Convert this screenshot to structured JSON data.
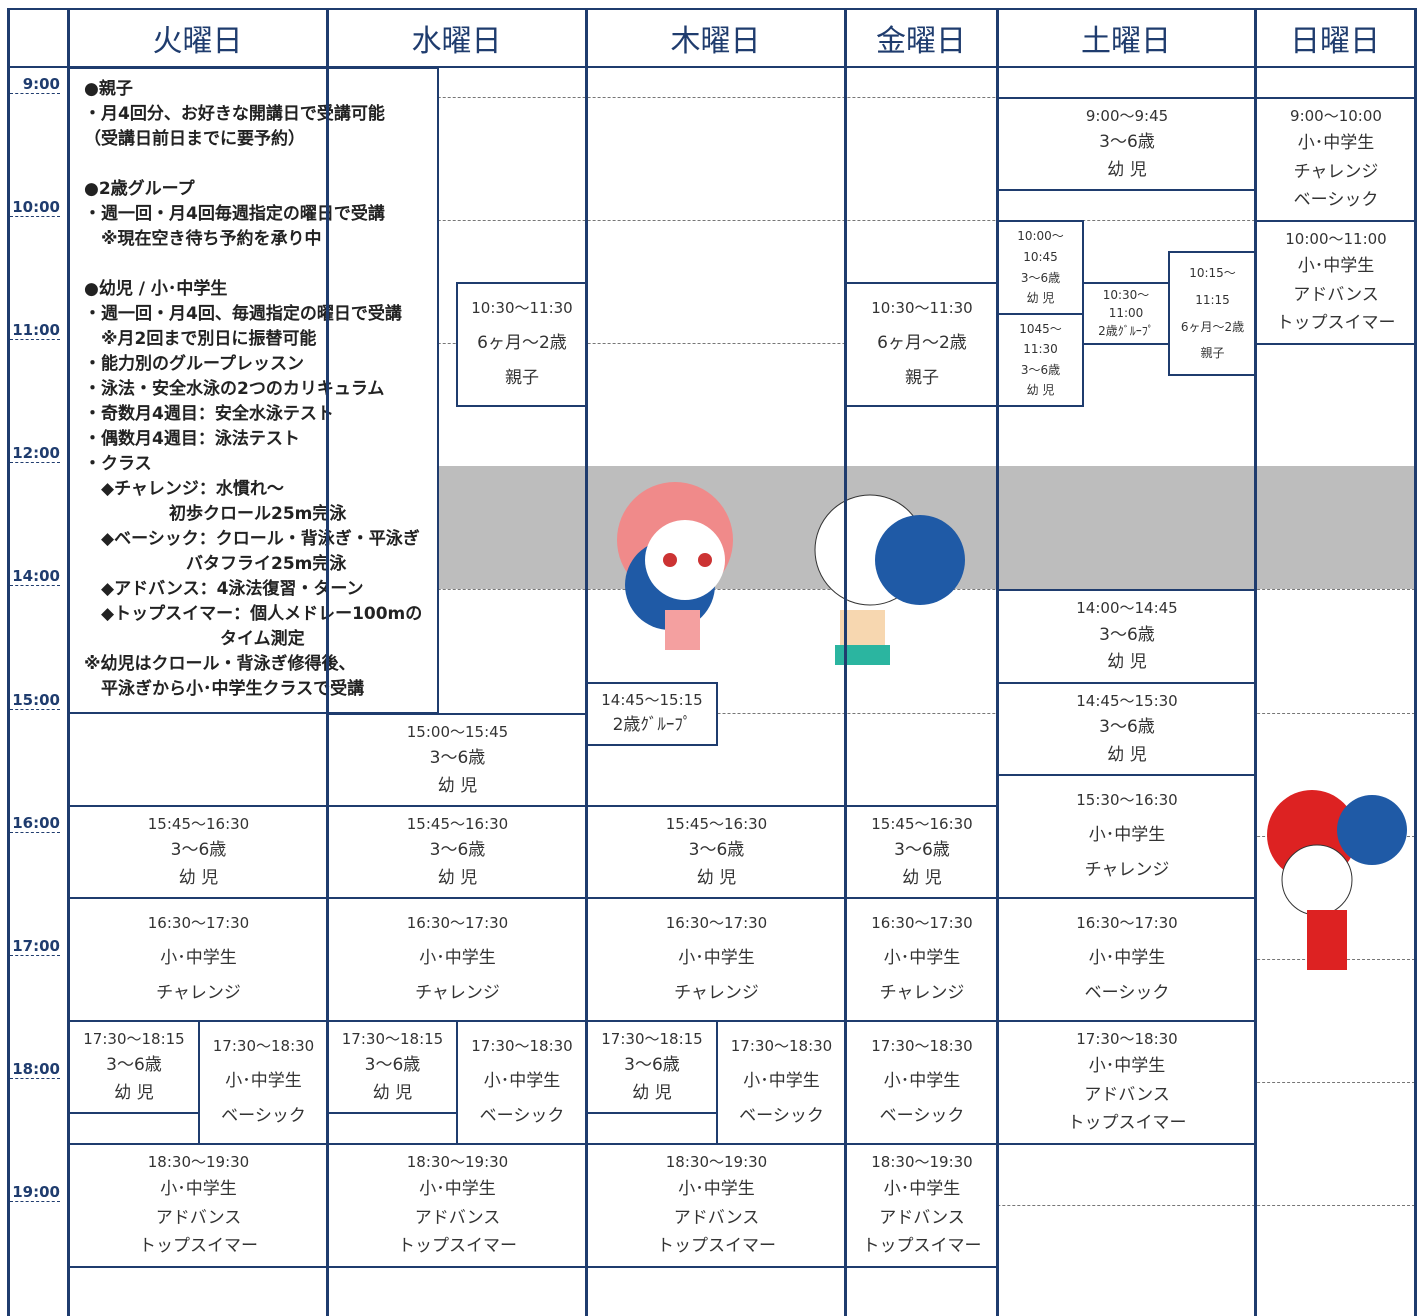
{
  "header": {
    "days": [
      "火曜日",
      "水曜日",
      "木曜日",
      "金曜日",
      "土曜日",
      "日曜日"
    ]
  },
  "times": [
    "9:00",
    "10:00",
    "11:00",
    "12:00",
    "14:00",
    "15:00",
    "16:00",
    "17:00",
    "18:00",
    "19:00"
  ],
  "notes": [
    [
      "●親子",
      "・月4回分、お好きな開講日で受講可能",
      "（受講日前日までに要予約）"
    ],
    [
      "●2歳グループ",
      "・週一回・月4回毎週指定の曜日で受講",
      "　※現在空き待ち予約を承り中"
    ],
    [
      "●幼児 / 小･中学生",
      "・週一回・月4回、毎週指定の曜日で受講",
      "　※月2回まで別日に振替可能",
      "・能力別のグループレッスン",
      "・泳法・安全水泳の2つのカリキュラム",
      "・奇数月4週目：安全水泳テスト",
      "・偶数月4週目：泳法テスト",
      "・クラス",
      "　◆チャレンジ：水慣れ〜",
      "　　　　　初歩クロール25m完泳",
      "　◆ベーシック：クロール・背泳ぎ・平泳ぎ",
      "　　　　　　バタフライ25m完泳",
      "　◆アドバンス：4泳法復習・ターン",
      "　◆トップスイマー：個人メドレー100mの",
      "　　　　　　　　タイム測定",
      "※幼児はクロール・背泳ぎ修得後、",
      "　平泳ぎから小･中学生クラスで受講"
    ]
  ],
  "blocks": [
    {
      "lines": [
        "15:45〜16:30",
        "3〜6歳",
        "幼 児"
      ]
    },
    {
      "lines": [
        "16:30〜17:30",
        "小･中学生",
        "チャレンジ"
      ]
    },
    {
      "lines": [
        "17:30〜18:15",
        "3〜6歳",
        "幼 児"
      ]
    },
    {
      "lines": [
        "17:30〜18:30",
        "小･中学生",
        "ベーシック"
      ]
    },
    {
      "lines": [
        "18:30〜19:30",
        "小･中学生",
        "アドバンス",
        "トップスイマー"
      ]
    },
    {
      "lines": [
        "10:30〜11:30",
        "6ヶ月〜2歳",
        "親子"
      ]
    },
    {
      "lines": [
        "15:00〜15:45",
        "3〜6歳",
        "幼 児"
      ]
    },
    {
      "lines": [
        "15:45〜16:30",
        "3〜6歳",
        "幼 児"
      ]
    },
    {
      "lines": [
        "16:30〜17:30",
        "小･中学生",
        "チャレンジ"
      ]
    },
    {
      "lines": [
        "17:30〜18:15",
        "3〜6歳",
        "幼 児"
      ]
    },
    {
      "lines": [
        "17:30〜18:30",
        "小･中学生",
        "ベーシック"
      ]
    },
    {
      "lines": [
        "18:30〜19:30",
        "小･中学生",
        "アドバンス",
        "トップスイマー"
      ]
    },
    {
      "lines": [
        "14:45〜15:15",
        "2歳ｸﾞﾙｰﾌﾟ"
      ]
    },
    {
      "lines": [
        "15:45〜16:30",
        "3〜6歳",
        "幼 児"
      ]
    },
    {
      "lines": [
        "16:30〜17:30",
        "小･中学生",
        "チャレンジ"
      ]
    },
    {
      "lines": [
        "17:30〜18:15",
        "3〜6歳",
        "幼 児"
      ]
    },
    {
      "lines": [
        "17:30〜18:30",
        "小･中学生",
        "ベーシック"
      ]
    },
    {
      "lines": [
        "18:30〜19:30",
        "小･中学生",
        "アドバンス",
        "トップスイマー"
      ]
    },
    {
      "lines": [
        "10:30〜11:30",
        "6ヶ月〜2歳",
        "親子"
      ]
    },
    {
      "lines": [
        "15:45〜16:30",
        "3〜6歳",
        "幼 児"
      ]
    },
    {
      "lines": [
        "16:30〜17:30",
        "小･中学生",
        "チャレンジ"
      ]
    },
    {
      "lines": [
        "17:30〜18:30",
        "小･中学生",
        "ベーシック"
      ]
    },
    {
      "lines": [
        "18:30〜19:30",
        "小･中学生",
        "アドバンス",
        "トップスイマー"
      ]
    },
    {
      "lines": [
        "9:00〜9:45",
        "3〜6歳",
        "幼 児"
      ]
    },
    {
      "lines": [
        "10:00〜",
        "10:45",
        "3〜6歳",
        "幼 児"
      ]
    },
    {
      "lines": [
        "1045〜",
        "11:30",
        "3〜6歳",
        "幼 児"
      ]
    },
    {
      "lines": [
        "10:30〜",
        "11:00",
        "2歳ｸﾞﾙｰﾌﾟ"
      ]
    },
    {
      "lines": [
        "10:15〜",
        "11:15",
        "6ヶ月〜2歳",
        "親子"
      ]
    },
    {
      "lines": [
        "14:00〜14:45",
        "3〜6歳",
        "幼 児"
      ]
    },
    {
      "lines": [
        "14:45〜15:30",
        "3〜6歳",
        "幼 児"
      ]
    },
    {
      "lines": [
        "15:30〜16:30",
        "小･中学生",
        "チャレンジ"
      ]
    },
    {
      "lines": [
        "16:30〜17:30",
        "小･中学生",
        "ベーシック"
      ]
    },
    {
      "lines": [
        "17:30〜18:30",
        "小･中学生",
        "アドバンス",
        "トップスイマー"
      ]
    },
    {
      "lines": [
        "9:00〜10:00",
        "小･中学生",
        "チャレンジ",
        "ベーシック"
      ]
    },
    {
      "lines": [
        "10:00〜11:00",
        "小･中学生",
        "アドバンス",
        "トップスイマー"
      ]
    }
  ]
}
